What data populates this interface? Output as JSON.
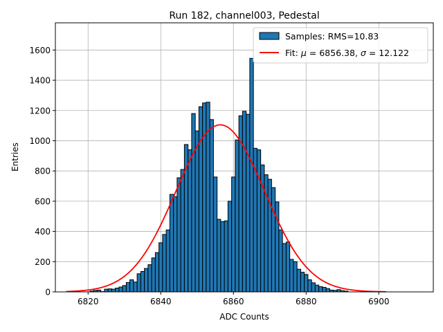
{
  "chart_data": {
    "type": "bar",
    "title": "Run 182, channel003, Pedestal",
    "xlabel": "ADC Counts",
    "ylabel": "Entries",
    "xlim": [
      6811,
      6915
    ],
    "ylim": [
      0,
      1780
    ],
    "xticks": [
      6820,
      6840,
      6860,
      6880,
      6900
    ],
    "yticks": [
      0,
      200,
      400,
      600,
      800,
      1000,
      1200,
      1400,
      1600
    ],
    "grid": true,
    "bin_width": 1,
    "bins": [
      [
        6821,
        5
      ],
      [
        6822,
        10
      ],
      [
        6823,
        12
      ],
      [
        6824,
        2
      ],
      [
        6825,
        18
      ],
      [
        6826,
        20
      ],
      [
        6827,
        18
      ],
      [
        6828,
        25
      ],
      [
        6829,
        32
      ],
      [
        6830,
        42
      ],
      [
        6831,
        62
      ],
      [
        6832,
        80
      ],
      [
        6833,
        65
      ],
      [
        6834,
        120
      ],
      [
        6835,
        135
      ],
      [
        6836,
        155
      ],
      [
        6837,
        180
      ],
      [
        6838,
        225
      ],
      [
        6839,
        260
      ],
      [
        6840,
        325
      ],
      [
        6841,
        380
      ],
      [
        6842,
        410
      ],
      [
        6843,
        645
      ],
      [
        6844,
        630
      ],
      [
        6845,
        755
      ],
      [
        6846,
        810
      ],
      [
        6847,
        975
      ],
      [
        6848,
        940
      ],
      [
        6849,
        1180
      ],
      [
        6850,
        1065
      ],
      [
        6851,
        1225
      ],
      [
        6852,
        1250
      ],
      [
        6853,
        1255
      ],
      [
        6854,
        1140
      ],
      [
        6855,
        760
      ],
      [
        6856,
        480
      ],
      [
        6857,
        465
      ],
      [
        6858,
        470
      ],
      [
        6859,
        600
      ],
      [
        6860,
        760
      ],
      [
        6861,
        1005
      ],
      [
        6862,
        1165
      ],
      [
        6863,
        1195
      ],
      [
        6864,
        1175
      ],
      [
        6865,
        1545
      ],
      [
        6866,
        950
      ],
      [
        6867,
        940
      ],
      [
        6868,
        840
      ],
      [
        6869,
        775
      ],
      [
        6870,
        745
      ],
      [
        6871,
        690
      ],
      [
        6872,
        595
      ],
      [
        6873,
        410
      ],
      [
        6874,
        320
      ],
      [
        6875,
        330
      ],
      [
        6876,
        215
      ],
      [
        6877,
        200
      ],
      [
        6878,
        150
      ],
      [
        6879,
        130
      ],
      [
        6880,
        115
      ],
      [
        6881,
        80
      ],
      [
        6882,
        60
      ],
      [
        6883,
        45
      ],
      [
        6884,
        35
      ],
      [
        6885,
        30
      ],
      [
        6886,
        22
      ],
      [
        6887,
        12
      ],
      [
        6888,
        10
      ],
      [
        6889,
        15
      ],
      [
        6890,
        8
      ],
      [
        6891,
        5
      ]
    ],
    "fit": {
      "mu": 6856.38,
      "sigma": 12.122,
      "amplitude": 1105,
      "x_range": [
        6814,
        6902
      ],
      "color": "#ff0000"
    },
    "bar_color": "#1f77b4",
    "legend": {
      "placement": "top-right",
      "samples_label": "Samples: RMS=10.83",
      "fit_prefix": "Fit: ",
      "mu_symbol": "μ",
      "mu_text": " = 6856.38, ",
      "sigma_symbol": "σ",
      "sigma_text": " = 12.122"
    }
  }
}
